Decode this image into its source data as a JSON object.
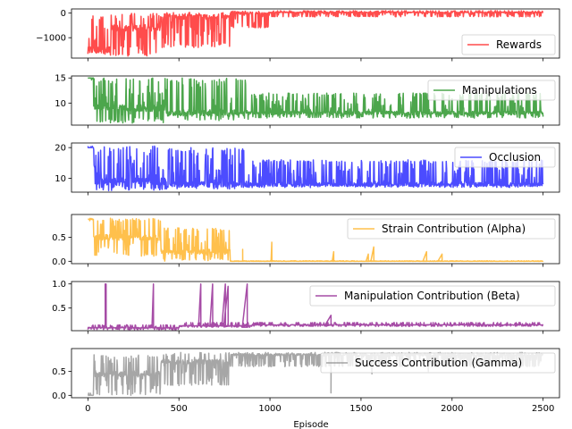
{
  "chart_data": {
    "type": "line",
    "xlabel": "Episode",
    "x_ticks": [
      0,
      500,
      1000,
      1500,
      2000,
      2500
    ],
    "xlim": [
      -90,
      2590
    ],
    "episodes": 2500,
    "panels": [
      {
        "series_name": "Rewards",
        "color": "#ff0000",
        "ylim": [
          -1830,
          170
        ],
        "y_ticks": [
          {
            "value": 0,
            "label": "0"
          },
          {
            "value": -1000,
            "label": "−1000"
          }
        ],
        "segments": [
          {
            "x_start": 0,
            "x_end": 20,
            "low": -1700,
            "high": -1000,
            "typical": -1400
          },
          {
            "x_start": 20,
            "x_end": 120,
            "low": -1750,
            "high": -100,
            "typical": -1500
          },
          {
            "x_start": 120,
            "x_end": 400,
            "low": -1750,
            "high": 0,
            "typical": -600
          },
          {
            "x_start": 400,
            "x_end": 780,
            "low": -1400,
            "high": 50,
            "typical": -150
          },
          {
            "x_start": 780,
            "x_end": 1000,
            "low": -600,
            "high": 80,
            "typical": 0
          },
          {
            "x_start": 1000,
            "x_end": 2500,
            "low": -150,
            "high": 100,
            "typical": 30
          }
        ]
      },
      {
        "series_name": "Manipulations",
        "color": "#008000",
        "ylim": [
          5.6,
          15.4
        ],
        "y_ticks": [
          {
            "value": 10,
            "label": "10"
          },
          {
            "value": 15,
            "label": "15"
          }
        ],
        "segments": [
          {
            "x_start": 0,
            "x_end": 30,
            "low": 14.5,
            "high": 15,
            "typical": 15
          },
          {
            "x_start": 30,
            "x_end": 430,
            "low": 6.0,
            "high": 15,
            "typical": 9
          },
          {
            "x_start": 430,
            "x_end": 880,
            "low": 6.5,
            "high": 15,
            "typical": 8
          },
          {
            "x_start": 880,
            "x_end": 2500,
            "low": 7.0,
            "high": 12,
            "typical": 8
          }
        ]
      },
      {
        "series_name": "Occlusion",
        "color": "#0000ff",
        "ylim": [
          5.5,
          21.5
        ],
        "y_ticks": [
          {
            "value": 10,
            "label": "10"
          },
          {
            "value": 20,
            "label": "20"
          }
        ],
        "segments": [
          {
            "x_start": 0,
            "x_end": 30,
            "low": 20,
            "high": 20.5,
            "typical": 20
          },
          {
            "x_start": 30,
            "x_end": 430,
            "low": 6.0,
            "high": 20.5,
            "typical": 9
          },
          {
            "x_start": 430,
            "x_end": 880,
            "low": 6.5,
            "high": 20,
            "typical": 8
          },
          {
            "x_start": 880,
            "x_end": 2500,
            "low": 7.0,
            "high": 16,
            "typical": 8
          }
        ]
      },
      {
        "series_name": "Strain Contribution (Alpha)",
        "color": "#ffa500",
        "ylim": [
          -0.05,
          0.98
        ],
        "y_ticks": [
          {
            "value": 0,
            "label": "0.0"
          },
          {
            "value": 0.5,
            "label": "0.5"
          }
        ],
        "segments": [
          {
            "x_start": 0,
            "x_end": 30,
            "low": 0.85,
            "high": 0.9,
            "typical": 0.88
          },
          {
            "x_start": 30,
            "x_end": 400,
            "low": 0.1,
            "high": 0.9,
            "typical": 0.5
          },
          {
            "x_start": 400,
            "x_end": 780,
            "low": 0.0,
            "high": 0.7,
            "typical": 0.2
          },
          {
            "x_start": 780,
            "x_end": 2500,
            "low": 0.0,
            "high": 0.01,
            "typical": 0.0
          }
        ],
        "spikes": [
          {
            "x": 850,
            "y": 0.25
          },
          {
            "x": 1010,
            "y": 0.4
          },
          {
            "x": 1350,
            "y": 0.2
          },
          {
            "x": 1540,
            "y": 0.15
          },
          {
            "x": 1570,
            "y": 0.3
          },
          {
            "x": 1860,
            "y": 0.2
          },
          {
            "x": 1945,
            "y": 0.15
          }
        ]
      },
      {
        "series_name": "Manipulation Contribution (Beta)",
        "color": "#800080",
        "ylim": [
          0.03,
          1.05
        ],
        "y_ticks": [
          {
            "value": 0.5,
            "label": "0.5"
          },
          {
            "value": 1.0,
            "label": "1.0"
          }
        ],
        "segments": [
          {
            "x_start": 0,
            "x_end": 500,
            "low": 0.05,
            "high": 0.15,
            "typical": 0.09
          },
          {
            "x_start": 500,
            "x_end": 900,
            "low": 0.1,
            "high": 0.2,
            "typical": 0.13
          },
          {
            "x_start": 900,
            "x_end": 2500,
            "low": 0.12,
            "high": 0.2,
            "typical": 0.15
          }
        ],
        "spikes": [
          {
            "x": 95,
            "y": 1.0
          },
          {
            "x": 100,
            "y": 1.0
          },
          {
            "x": 360,
            "y": 1.0
          },
          {
            "x": 620,
            "y": 1.0
          },
          {
            "x": 685,
            "y": 1.0
          },
          {
            "x": 755,
            "y": 1.0
          },
          {
            "x": 770,
            "y": 0.95
          },
          {
            "x": 875,
            "y": 1.0
          },
          {
            "x": 1335,
            "y": 0.35
          }
        ]
      },
      {
        "series_name": "Success Contribution (Gamma)",
        "color": "#808080",
        "ylim": [
          -0.05,
          0.98
        ],
        "y_ticks": [
          {
            "value": 0,
            "label": "0.0"
          },
          {
            "value": 0.5,
            "label": "0.5"
          }
        ],
        "segments": [
          {
            "x_start": 0,
            "x_end": 30,
            "low": 0.0,
            "high": 0.05,
            "typical": 0.0
          },
          {
            "x_start": 30,
            "x_end": 400,
            "low": 0.0,
            "high": 0.85,
            "typical": 0.45
          },
          {
            "x_start": 400,
            "x_end": 780,
            "low": 0.2,
            "high": 0.9,
            "typical": 0.7
          },
          {
            "x_start": 780,
            "x_end": 2500,
            "low": 0.6,
            "high": 0.9,
            "typical": 0.85
          }
        ],
        "spikes": [
          {
            "x": 1335,
            "y": 0.05
          },
          {
            "x": 1560,
            "y": 0.45
          },
          {
            "x": 1870,
            "y": 0.5
          }
        ]
      }
    ]
  }
}
